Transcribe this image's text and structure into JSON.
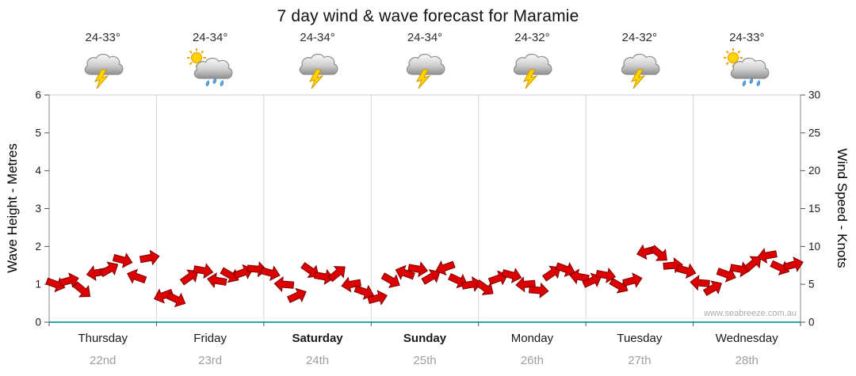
{
  "title": "7 day wind & wave forecast for Maramie",
  "watermark": "www.seabreeze.com.au",
  "axes": {
    "left_label": "Wave Height - Metres",
    "right_label": "Wind Speed - Knots",
    "left_ticks": [
      0,
      1,
      2,
      3,
      4,
      5,
      6
    ],
    "right_ticks": [
      0,
      5,
      10,
      15,
      20,
      25,
      30
    ]
  },
  "days": [
    {
      "name": "Thursday",
      "date": "22nd",
      "temp_range": "24-33°",
      "icon": "storm",
      "bold": false
    },
    {
      "name": "Friday",
      "date": "23rd",
      "temp_range": "24-34°",
      "icon": "sun-rain",
      "bold": false
    },
    {
      "name": "Saturday",
      "date": "24th",
      "temp_range": "24-34°",
      "icon": "storm",
      "bold": true
    },
    {
      "name": "Sunday",
      "date": "25th",
      "temp_range": "24-34°",
      "icon": "storm",
      "bold": true
    },
    {
      "name": "Monday",
      "date": "26th",
      "temp_range": "24-32°",
      "icon": "storm",
      "bold": false
    },
    {
      "name": "Tuesday",
      "date": "27th",
      "temp_range": "24-32°",
      "icon": "storm",
      "bold": false
    },
    {
      "name": "Wednesday",
      "date": "28th",
      "temp_range": "24-33°",
      "icon": "sun-rain",
      "bold": false
    }
  ],
  "chart_data": {
    "type": "area",
    "title": "7 day wind & wave forecast for Maramie",
    "ylabel_left": "Wave Height - Metres",
    "ylabel_right": "Wind Speed - Knots",
    "ylim_left_metres": [
      0,
      6
    ],
    "ylim_right_knots": [
      0,
      30
    ],
    "x_categories": [
      "Thursday 22nd",
      "Friday 23rd",
      "Saturday 24th",
      "Sunday 25th",
      "Monday 26th",
      "Tuesday 27th",
      "Wednesday 28th"
    ],
    "points_per_day": 8,
    "legend": "none",
    "grid": "vertical-day-boundaries",
    "marker": "red-wind-arrow",
    "colors": {
      "arrow_fill": "#dd0000",
      "arrow_outline": "#7a0000",
      "bottom_axis": "#2aa7a7"
    },
    "series": [
      {
        "name": "Wind speed",
        "unit": "knots",
        "values": [
          5.0,
          5.5,
          4.2,
          6.5,
          7.0,
          8.2,
          6.0,
          8.5,
          3.5,
          3.0,
          6.0,
          6.8,
          5.5,
          6.2,
          6.6,
          7.0,
          6.5,
          5.0,
          3.5,
          6.8,
          6.0,
          6.5,
          5.0,
          4.0,
          3.2,
          5.5,
          6.5,
          7.0,
          6.0,
          7.2,
          5.5,
          5.0,
          4.5,
          5.8,
          6.2,
          5.0,
          4.2,
          6.5,
          7.0,
          6.0,
          5.5,
          6.2,
          4.8,
          5.5,
          9.3,
          9.0,
          7.5,
          6.8,
          5.2,
          4.5,
          6.3,
          7.0,
          7.8,
          8.8,
          7.2,
          7.6
        ],
        "directions_deg": [
          20,
          -15,
          40,
          170,
          -30,
          15,
          200,
          -10,
          160,
          25,
          -35,
          10,
          190,
          30,
          -20,
          5,
          15,
          185,
          -25,
          35,
          10,
          -40,
          170,
          20,
          -15,
          30,
          200,
          10,
          -30,
          160,
          25,
          -10,
          35,
          -20,
          15,
          175,
          5,
          -35,
          20,
          190,
          -25,
          10,
          30,
          -15,
          165,
          40,
          -5,
          15,
          185,
          -30,
          20,
          10,
          -40,
          170,
          25,
          -15
        ]
      }
    ]
  }
}
